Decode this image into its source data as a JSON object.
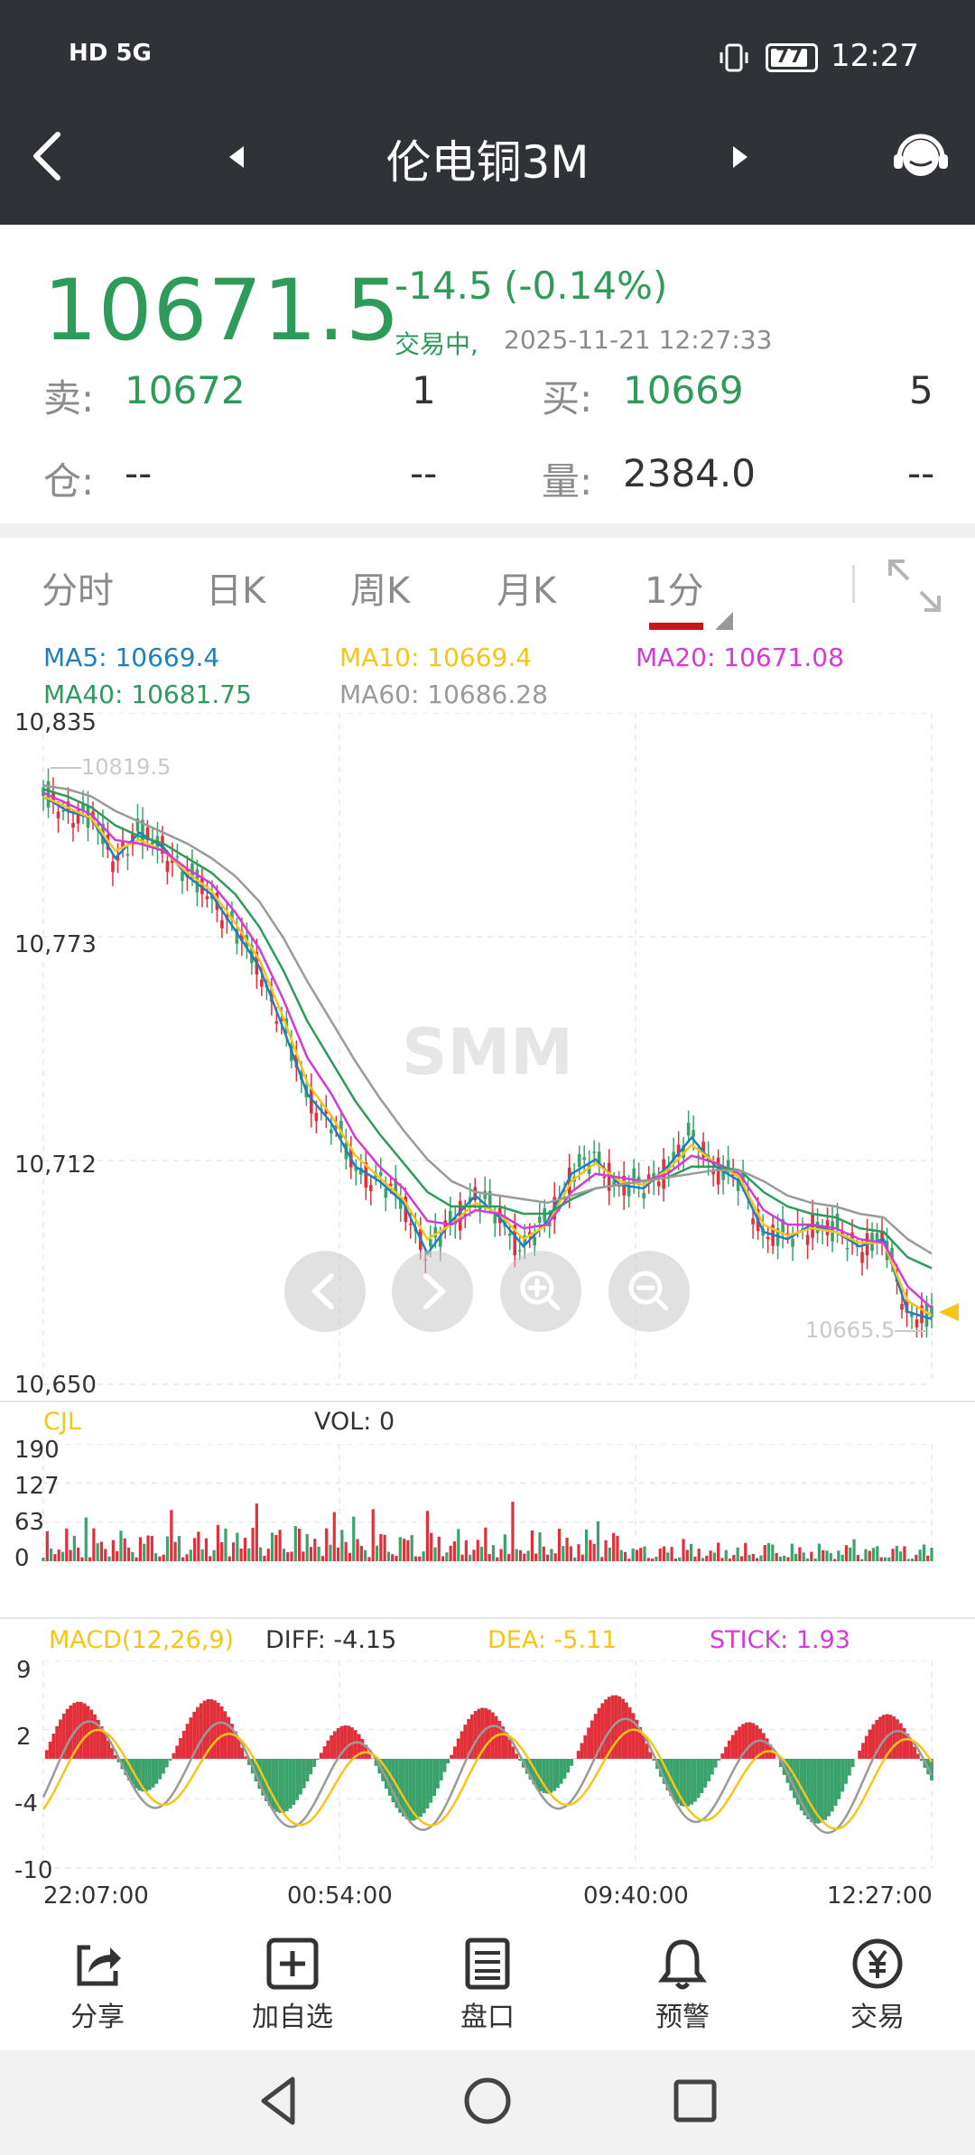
{
  "status": {
    "signal": "HD 5G",
    "battery": "77",
    "time": "12:27"
  },
  "header": {
    "title": "伦电铜3M"
  },
  "quote": {
    "price": "10671.5",
    "change": "-14.5",
    "change_pct": "(-0.14%)",
    "status": "交易中,",
    "datetime": "2025-11-21 12:27:33",
    "sell_label": "卖:",
    "sell_price": "10672",
    "sell_qty": "1",
    "buy_label": "买:",
    "buy_price": "10669",
    "buy_qty": "5",
    "oi_label": "仓:",
    "oi_value": "--",
    "oi_change": "--",
    "vol_label": "量:",
    "vol_value": "2384.0",
    "vol_change": "--"
  },
  "tabs": [
    "分时",
    "日K",
    "周K",
    "月K",
    "1分"
  ],
  "ma": {
    "ma5": "MA5: 10669.4",
    "ma10": "MA10: 10669.4",
    "ma20": "MA20: 10671.08",
    "ma40": "MA40: 10681.75",
    "ma60": "MA60: 10686.28"
  },
  "colors": {
    "ma5": "#1f7fc0",
    "ma10": "#f5c518",
    "ma20": "#d63ad6",
    "ma40": "#2e9b5b",
    "ma60": "#9a9a9a",
    "up": "#e2303b",
    "down": "#3aa26a"
  },
  "watermark": "SMM",
  "main_chart": {
    "y_ticks": [
      "10,835",
      "10,773",
      "10,712",
      "10,650"
    ],
    "high_label": "10819.5",
    "low_label": "10665.5"
  },
  "volume": {
    "title": "CJL",
    "vol_label": "VOL: 0",
    "y_ticks": [
      "190",
      "127",
      "63",
      "0"
    ]
  },
  "macd": {
    "title": "MACD(12,26,9)",
    "diff": "DIFF: -4.15",
    "dea": "DEA: -5.11",
    "stick": "STICK: 1.93",
    "y_ticks": [
      "9",
      "2",
      "-4",
      "-10"
    ]
  },
  "x_ticks": [
    "22:07:00",
    "00:54:00",
    "09:40:00",
    "12:27:00"
  ],
  "chart_data": [
    {
      "type": "line",
      "title": "伦电铜3M 1分",
      "ylim": [
        10650,
        10835
      ],
      "x_ticks": [
        "22:07:00",
        "00:54:00",
        "09:40:00",
        "12:27:00"
      ],
      "series": [
        {
          "name": "MA5",
          "values": [
            10812,
            10808,
            10806,
            10795,
            10802,
            10798,
            10790,
            10785,
            10775,
            10765,
            10748,
            10730,
            10722,
            10710,
            10706,
            10700,
            10686,
            10695,
            10702,
            10696,
            10688,
            10695,
            10708,
            10712,
            10705,
            10704,
            10710,
            10718,
            10710,
            10706,
            10692,
            10690,
            10694,
            10692,
            10688,
            10690,
            10670,
            10668
          ]
        },
        {
          "name": "MA10",
          "values": [
            10812,
            10809,
            10806,
            10797,
            10800,
            10797,
            10791,
            10786,
            10777,
            10767,
            10751,
            10733,
            10724,
            10713,
            10707,
            10701,
            10690,
            10694,
            10700,
            10697,
            10690,
            10694,
            10706,
            10711,
            10706,
            10705,
            10709,
            10716,
            10711,
            10707,
            10694,
            10691,
            10693,
            10692,
            10689,
            10689,
            10673,
            10669
          ]
        },
        {
          "name": "MA20",
          "values": [
            10813,
            10810,
            10807,
            10800,
            10799,
            10797,
            10792,
            10788,
            10780,
            10770,
            10756,
            10740,
            10730,
            10718,
            10710,
            10704,
            10695,
            10694,
            10698,
            10697,
            10693,
            10694,
            10703,
            10708,
            10707,
            10706,
            10708,
            10713,
            10711,
            10708,
            10698,
            10694,
            10694,
            10693,
            10690,
            10689,
            10677,
            10671
          ]
        },
        {
          "name": "MA40",
          "values": [
            10814,
            10812,
            10809,
            10804,
            10801,
            10799,
            10795,
            10791,
            10785,
            10776,
            10764,
            10750,
            10739,
            10728,
            10719,
            10711,
            10703,
            10699,
            10699,
            10699,
            10697,
            10697,
            10701,
            10704,
            10705,
            10706,
            10707,
            10710,
            10710,
            10709,
            10703,
            10699,
            10697,
            10696,
            10693,
            10692,
            10685,
            10682
          ]
        },
        {
          "name": "MA60",
          "values": [
            10815,
            10814,
            10812,
            10808,
            10805,
            10802,
            10799,
            10795,
            10790,
            10783,
            10773,
            10761,
            10750,
            10739,
            10729,
            10720,
            10712,
            10706,
            10703,
            10702,
            10701,
            10700,
            10702,
            10704,
            10705,
            10706,
            10707,
            10708,
            10709,
            10709,
            10706,
            10702,
            10700,
            10699,
            10697,
            10696,
            10690,
            10686
          ]
        }
      ]
    }
  ]
}
